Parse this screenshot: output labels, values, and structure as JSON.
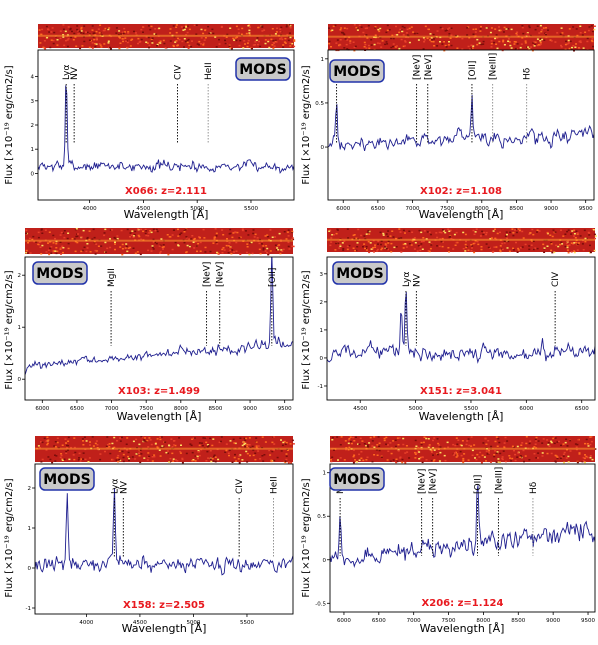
{
  "figure": {
    "ylabel": "Flux [×10⁻¹⁹ erg/cm2/s]",
    "xlabel": "Wavelength [Å]",
    "badge": "MODS",
    "colors": {
      "spectrum": "#1f1f8f",
      "label": "#e8191f",
      "badge_fill": "#c9c9c9",
      "badge_border": "#2233aa",
      "strip_base": "#c0201a",
      "grey_line": "#8a8a8a"
    }
  },
  "chart_data": [
    {
      "type": "line",
      "id": "X066",
      "label": "X066: z=2.111",
      "xlim": [
        3520,
        5900
      ],
      "ylim": [
        -1.1,
        5.1
      ],
      "xticks": [
        4000,
        4500,
        5000,
        5500
      ],
      "yticks": [
        0,
        1,
        2,
        3,
        4
      ],
      "lines": [
        {
          "name": "Lyα",
          "x": 3782,
          "color": "black"
        },
        {
          "name": "NV",
          "x": 3856,
          "color": "black"
        },
        {
          "name": "CIV",
          "x": 4817,
          "color": "black"
        },
        {
          "name": "HeII",
          "x": 5102,
          "color": "grey"
        }
      ],
      "spikes": [
        [
          3782,
          3.7
        ]
      ],
      "base": 0.3,
      "noise": 0.35,
      "ramp": 0.0
    },
    {
      "type": "line",
      "id": "X102",
      "label": "X102: z=1.108",
      "xlim": [
        5780,
        9620
      ],
      "ylim": [
        -0.6,
        1.1
      ],
      "xticks": [
        6000,
        6500,
        7000,
        7500,
        8000,
        8500,
        9000,
        9500
      ],
      "yticks": [
        0.0,
        0.5,
        1.0
      ],
      "lines": [
        {
          "name": "MgII",
          "x": 5904,
          "color": "black"
        },
        {
          "name": "[NeV]",
          "x": 7059,
          "color": "black"
        },
        {
          "name": "[NeV]",
          "x": 7220,
          "color": "black"
        },
        {
          "name": "[OII]",
          "x": 7858,
          "color": "black"
        },
        {
          "name": "[NeIII]",
          "x": 8157,
          "color": "grey"
        },
        {
          "name": "Hδ",
          "x": 8648,
          "color": "grey"
        }
      ],
      "spikes": [
        [
          7858,
          0.48
        ],
        [
          5904,
          0.45
        ]
      ],
      "base": 0.02,
      "noise": 0.12,
      "ramp": 0.12
    },
    {
      "type": "line",
      "id": "X103",
      "label": "X103: z=1.499",
      "xlim": [
        5750,
        9620
      ],
      "ylim": [
        -0.4,
        2.35
      ],
      "xticks": [
        6000,
        6500,
        7000,
        7500,
        8000,
        8500,
        9000,
        9500
      ],
      "yticks": [
        0,
        1,
        2
      ],
      "lines": [
        {
          "name": "MgII",
          "x": 6993,
          "color": "black"
        },
        {
          "name": "[NeV]",
          "x": 8372,
          "color": "black"
        },
        {
          "name": "[NeV]",
          "x": 8562,
          "color": "black"
        },
        {
          "name": "[OII]",
          "x": 9314,
          "color": "black"
        }
      ],
      "spikes": [
        [
          9314,
          1.9
        ]
      ],
      "base": 0.25,
      "noise": 0.12,
      "ramp": 0.45
    },
    {
      "type": "line",
      "id": "X151",
      "label": "X151: z=3.041",
      "xlim": [
        4200,
        6620
      ],
      "ylim": [
        -1.5,
        3.6
      ],
      "xticks": [
        4500,
        5000,
        5500,
        6000,
        6500
      ],
      "yticks": [
        -1,
        0,
        1,
        2,
        3
      ],
      "lines": [
        {
          "name": "Lyα",
          "x": 4913,
          "color": "black"
        },
        {
          "name": "NV",
          "x": 5007,
          "color": "black"
        },
        {
          "name": "CIV",
          "x": 6260,
          "color": "black"
        }
      ],
      "spikes": [
        [
          4913,
          2.4
        ],
        [
          4870,
          1.6
        ]
      ],
      "base": 0.2,
      "noise": 0.45,
      "ramp": 0.0
    },
    {
      "type": "line",
      "id": "X158",
      "label": "X158: z=2.505",
      "xlim": [
        3520,
        5930
      ],
      "ylim": [
        -1.15,
        2.6
      ],
      "xticks": [
        4000,
        4500,
        5000,
        5500
      ],
      "yticks": [
        -1,
        0,
        1,
        2
      ],
      "lines": [
        {
          "name": "Lyα",
          "x": 4261,
          "color": "black"
        },
        {
          "name": "NV",
          "x": 4345,
          "color": "black"
        },
        {
          "name": "CIV",
          "x": 5427,
          "color": "black"
        },
        {
          "name": "HeII",
          "x": 5748,
          "color": "grey"
        }
      ],
      "spikes": [
        [
          4261,
          2.0
        ],
        [
          3820,
          1.8
        ]
      ],
      "base": 0.1,
      "noise": 0.3,
      "ramp": 0.0
    },
    {
      "type": "line",
      "id": "X206",
      "label": "X206: z=1.124",
      "xlim": [
        5800,
        9600
      ],
      "ylim": [
        -0.6,
        1.1
      ],
      "xticks": [
        6000,
        6500,
        7000,
        7500,
        8000,
        8500,
        9000,
        9500
      ],
      "yticks": [
        -0.5,
        0.0,
        0.5,
        1.0
      ],
      "lines": [
        {
          "name": "MgII",
          "x": 5945,
          "color": "black"
        },
        {
          "name": "[NeV]",
          "x": 7114,
          "color": "black"
        },
        {
          "name": "[NeV]",
          "x": 7272,
          "color": "black"
        },
        {
          "name": "[OII]",
          "x": 7915,
          "color": "black"
        },
        {
          "name": "[NeIII]",
          "x": 8215,
          "color": "black"
        },
        {
          "name": "Hδ",
          "x": 8710,
          "color": "grey"
        }
      ],
      "spikes": [
        [
          7915,
          0.78
        ],
        [
          5945,
          0.55
        ]
      ],
      "base": 0.0,
      "noise": 0.14,
      "ramp": 0.35
    }
  ]
}
